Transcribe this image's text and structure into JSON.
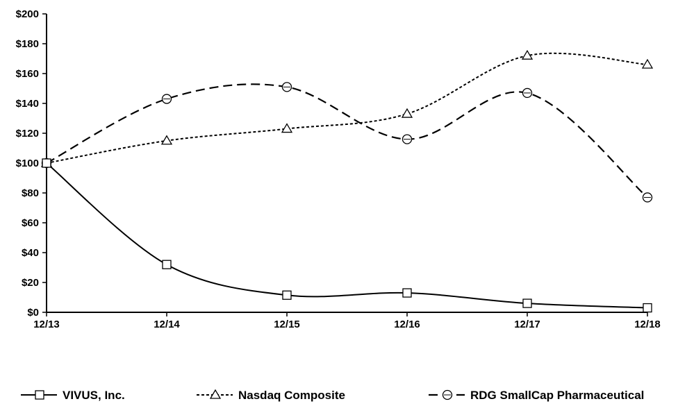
{
  "chart_data": {
    "type": "line",
    "title": "",
    "xlabel": "",
    "ylabel": "",
    "categories": [
      "12/13",
      "12/14",
      "12/15",
      "12/16",
      "12/17",
      "12/18"
    ],
    "ylim": [
      0,
      200
    ],
    "y_ticks": [
      "$0",
      "$20",
      "$40",
      "$60",
      "$80",
      "$100",
      "$120",
      "$140",
      "$160",
      "$180",
      "$200"
    ],
    "y_tick_values": [
      0,
      20,
      40,
      60,
      80,
      100,
      120,
      140,
      160,
      180,
      200
    ],
    "grid": false,
    "legend_position": "bottom",
    "series": [
      {
        "name": "VIVUS, Inc.",
        "marker": "square",
        "dash": "solid",
        "values": [
          100,
          32,
          11.5,
          13,
          6,
          3
        ]
      },
      {
        "name": "Nasdaq Composite",
        "marker": "triangle",
        "dash": "dotted",
        "values": [
          100,
          115,
          123,
          133,
          172,
          166
        ]
      },
      {
        "name": "RDG SmallCap Pharmaceutical",
        "marker": "circle",
        "dash": "dashed",
        "values": [
          100,
          143,
          151,
          116,
          147,
          77
        ]
      }
    ]
  }
}
